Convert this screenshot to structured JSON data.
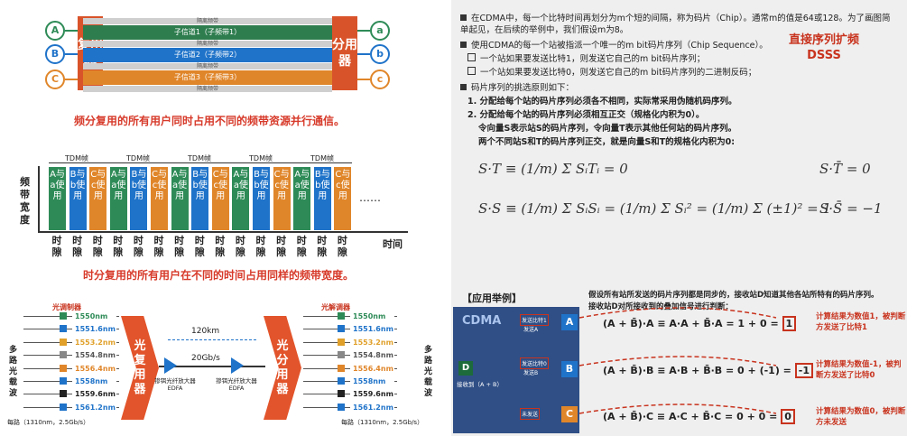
{
  "fdm": {
    "users": [
      "A",
      "B",
      "C"
    ],
    "outs": [
      "a",
      "b",
      "c"
    ],
    "mux_label": "复用器",
    "demux_label": "分用器",
    "guard_label": "隔离频带",
    "channels": [
      "子信道1（子频带1）",
      "子信道2（子频带2）",
      "子信道3（子频带3）"
    ],
    "caption": "频分复用的所有用户同时占用不同的频带资源并行通信。"
  },
  "tdm": {
    "frame_label": "TDM帧",
    "axis_y": "频带宽度",
    "slot_texts": [
      "A与a使用",
      "B与b使用",
      "C与c使用"
    ],
    "slot_label": "时隙",
    "axis_x": "时间",
    "dots": "……",
    "caption": "时分复用的所有用户在不同的时间占用同样的频带宽度。"
  },
  "wdm": {
    "mod_label": "光调制器",
    "demod_label": "光解调器",
    "wavelengths": [
      "1550nm",
      "1551.6nm",
      "1553.2nm",
      "1554.8nm",
      "1556.4nm",
      "1558nm",
      "1559.6nm",
      "1561.2nm"
    ],
    "mux_label": "光复用器",
    "demux_label": "光分用器",
    "distance": "120km",
    "rate": "20Gb/s",
    "amp1": "掺铒光纤放大器 EDFA",
    "amp2": "掺铒光纤放大器 EDFA",
    "left_side": "多路光载波",
    "right_side": "多路光载波",
    "each_left": "每路（1310nm，2.5Gb/s）",
    "each_right": "每路（1310nm，2.5Gb/s）"
  },
  "cdma": {
    "p1": "在CDMA中，每一个比特时间再划分为m个短的间隔，称为码片（Chip）。通常m的值是64或128。为了画图简单起见，在后续的举例中，我们假设m为8。",
    "p2": "使用CDMA的每一个站被指派一个唯一的m bit码片序列（Chip Sequence）。",
    "sub1": "一个站如果要发送比特1，则发送它自己的m bit码片序列；",
    "sub2": "一个站如果要发送比特0，则发送它自己的m bit码片序列的二进制反码；",
    "note": "直接序列扩频 DSSS",
    "p3": "码片序列的挑选原则如下：",
    "r1": "1. 分配给每个站的码片序列必须各不相同，实际常采用伪随机码序列。",
    "r2": "2. 分配给每个站的码片序列必须相互正交（规格化内积为0）。",
    "r2a": "令向量S表示站S的码片序列，令向量T表示其他任何站的码片序列。",
    "r2b": "两个不同站S和T的码片序列正交，就是向量S和T的规格化内积为0:",
    "f1": "S·T ≡ (1/m) Σ SᵢTᵢ = 0",
    "f1r": "S·T̄ = 0",
    "f2": "S·S ≡ (1/m) Σ SᵢSᵢ = (1/m) Σ Sᵢ² = (1/m) Σ (±1)² = 1",
    "f2r": "S·S̄ = −1",
    "example_title": "【应用举例】",
    "example_desc1": "假设所有站所发送的码片序列都是同步的，接收站D知道其他各站所特有的码片序列。",
    "example_desc2": "接收站D对所接收到的叠加信号进行判断：",
    "cdma_label": "CDMA",
    "send_a": "发送比特1",
    "send_a2": "发送A",
    "send_b": "发送比特0",
    "send_b2": "发送B",
    "send_c": "未发送",
    "station_d": "D",
    "recv": "接收到（A + B）",
    "eq1": "(A + B̄)·A ≡ A·A + B̄·A = 1 + 0 =",
    "eq1r": "1",
    "eq2": "(A + B̄)·B ≡ A·B + B̄·B = 0 + (-1) =",
    "eq2r": "-1",
    "eq3": "(A + B̄)·C ≡ A·C + B̄·C = 0 + 0 =",
    "eq3r": "0",
    "res1": "计算结果为数值1，被判断方发送了比特1",
    "res2": "计算结果为数值-1，被判断方发送了比特0",
    "res3": "计算结果为数值0，被判断方未发送",
    "colors": {
      "accent": "#c8331e",
      "green": "#2e8b57",
      "blue": "#1f73c9",
      "orange": "#e0862a",
      "boxbg": "#2f4f86"
    }
  }
}
